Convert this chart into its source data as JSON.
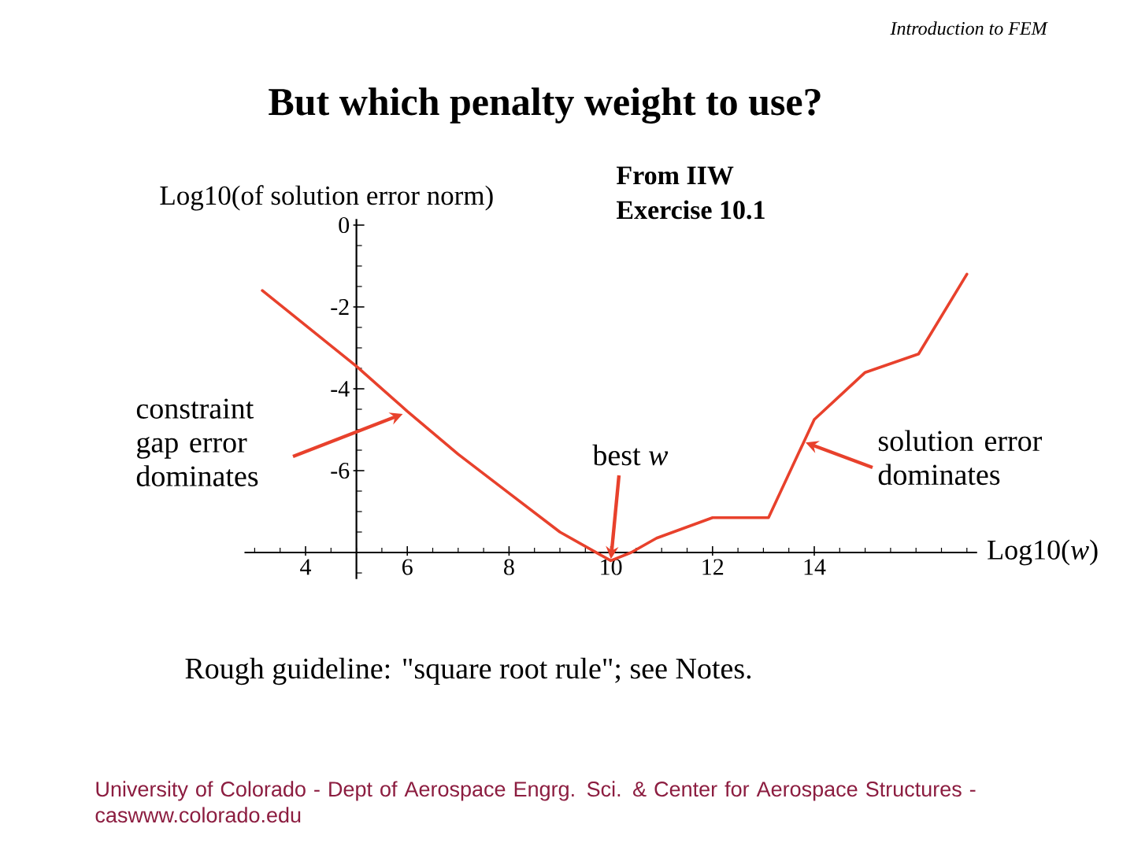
{
  "chart_data": {
    "type": "line",
    "title": "But which penalty weight to use?",
    "xlabel": "Log10(*w*)",
    "ylabel": "Log10(of solution error norm)",
    "x": [
      3.15,
      5.0,
      6.0,
      7.0,
      8.0,
      9.0,
      9.5,
      10.0,
      10.4,
      10.9,
      12.0,
      13.1,
      14.0,
      15.0,
      16.05,
      17.0
    ],
    "values": [
      -1.6,
      -3.45,
      -4.55,
      -5.6,
      -6.55,
      -7.5,
      -7.85,
      -8.2,
      -8.0,
      -7.65,
      -7.15,
      -7.15,
      -4.75,
      -3.6,
      -3.15,
      -1.2
    ],
    "color": "#e8412c",
    "xlim": [
      2.8,
      17.2
    ],
    "ylim": [
      -8.65,
      0.15
    ],
    "xticks": [
      4,
      6,
      8,
      10,
      12,
      14
    ],
    "yticks": [
      0,
      -2,
      -4,
      -6
    ],
    "annotations": [
      {
        "text": "constraint gap error dominates",
        "x": 5.94,
        "y": -4.6
      },
      {
        "text": "best *w*",
        "x": 10,
        "y": -8.2
      },
      {
        "text": "solution error dominates",
        "x": 13.8,
        "y": -5.3
      },
      "From IIW",
      "Exercise 10.1",
      "Rough guideline: \"square root rule\"; see Notes.",
      "Introduction to FEM",
      "University of Colorado - Dept of Aerospace Engrg. Sci. & Center for Aerospace Structures - caswww.colorado.edu"
    ]
  }
}
